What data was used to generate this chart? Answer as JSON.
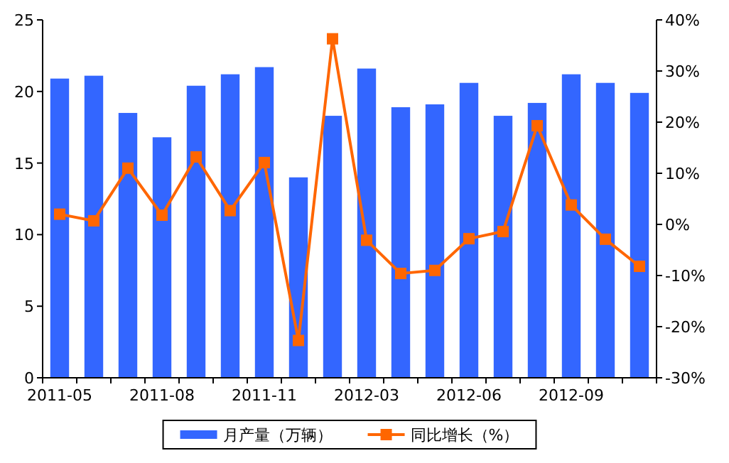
{
  "chart_data": {
    "type": "bar",
    "categories": [
      "2011-05",
      null,
      null,
      "2011-08",
      null,
      null,
      "2011-11",
      null,
      null,
      "2012-03",
      null,
      null,
      "2012-06",
      null,
      null,
      "2012-09",
      null,
      null
    ],
    "series": [
      {
        "name": "月产量（万辆）",
        "color": "#3366ff",
        "values": [
          20.9,
          21.1,
          18.5,
          16.8,
          20.4,
          21.2,
          21.7,
          14.0,
          18.3,
          21.6,
          18.9,
          19.1,
          20.6,
          18.3,
          19.2,
          21.2,
          20.6,
          19.9
        ]
      },
      {
        "name": "同比增长（%）",
        "type": "line",
        "axis": "y2",
        "color": "#ff6600",
        "marker": "square",
        "values": [
          2.0,
          0.7,
          11.0,
          1.8,
          13.2,
          2.7,
          12.1,
          -22.7,
          36.3,
          -3.1,
          -9.6,
          -9.0,
          -2.8,
          -1.4,
          19.3,
          3.8,
          -2.9,
          -8.2
        ]
      }
    ],
    "ylim": [
      0,
      25
    ],
    "yticks": [
      0,
      5,
      10,
      15,
      20,
      25
    ],
    "y2lim": [
      -30,
      40
    ],
    "y2ticks": [
      {
        "value": -30,
        "label": "-30%"
      },
      {
        "value": -20,
        "label": "-20%"
      },
      {
        "value": -10,
        "label": "-10%"
      },
      {
        "value": 0,
        "label": "0%"
      },
      {
        "value": 10,
        "label": "10%"
      },
      {
        "value": 20,
        "label": "20%"
      },
      {
        "value": 30,
        "label": "30%"
      },
      {
        "value": 40,
        "label": "40%"
      }
    ],
    "grid": false,
    "legend": "bottom"
  }
}
